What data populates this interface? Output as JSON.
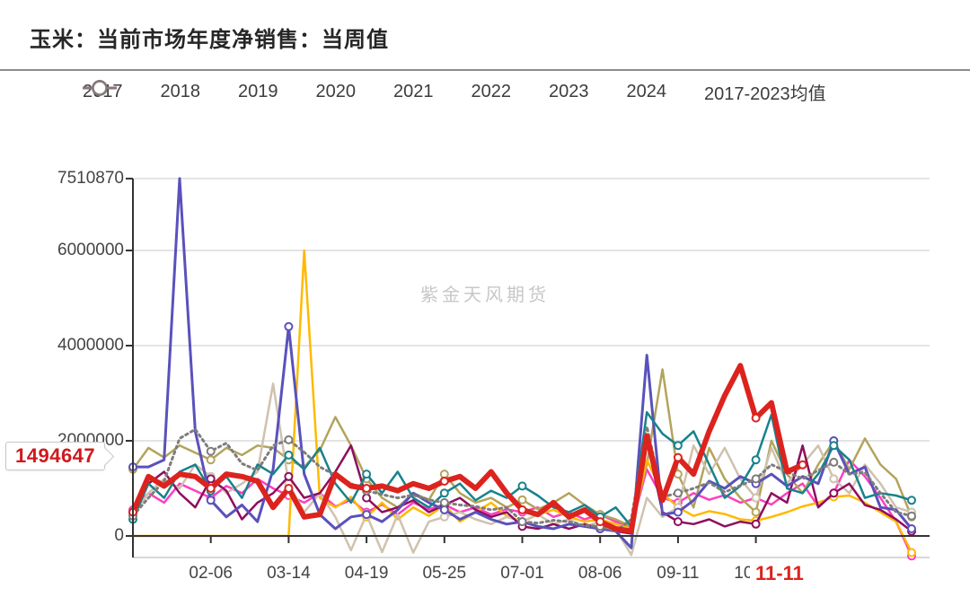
{
  "title": "玉米：当前市场年度净销售：当周值",
  "watermark": "紫金天风期货",
  "legend": {
    "items": [
      {
        "label": "2017",
        "color": "#FF3EC0"
      },
      {
        "label": "2018",
        "color": "#B3A45C"
      },
      {
        "label": "2019",
        "color": "#FFB900"
      },
      {
        "label": "2020",
        "color": "#17828C"
      },
      {
        "label": "2021",
        "color": "#5A51BC"
      },
      {
        "label": "2022",
        "color": "#8E0E5F"
      },
      {
        "label": "2023",
        "color": "#CFC2AE"
      },
      {
        "label": "2024",
        "color": "#DC231E"
      },
      {
        "label": "2017-2023均值",
        "color": "#7D7D7D"
      }
    ]
  },
  "chart_data": {
    "type": "line",
    "title": "玉米：当前市场年度净销售：当周值",
    "ylim": [
      -450000,
      7510870
    ],
    "grid": "horizontal",
    "legend_position": "top",
    "y_ticks": [
      {
        "value": 0,
        "label": "0"
      },
      {
        "value": 2000000,
        "label": "2000000"
      },
      {
        "value": 4000000,
        "label": "4000000"
      },
      {
        "value": 6000000,
        "label": "6000000"
      },
      {
        "value": 7510870,
        "label": "7510870"
      }
    ],
    "x_ticks": [
      {
        "i": 5,
        "label": "02-06"
      },
      {
        "i": 10,
        "label": "03-14"
      },
      {
        "i": 15,
        "label": "04-19"
      },
      {
        "i": 20,
        "label": "05-25"
      },
      {
        "i": 25,
        "label": "07-01"
      },
      {
        "i": 30,
        "label": "08-06"
      },
      {
        "i": 35,
        "label": "09-11"
      },
      {
        "i": 40,
        "label": "10-17"
      }
    ],
    "current_x_label": {
      "label": "11-11",
      "i": 43.4
    },
    "annotation": {
      "value_label": "1494647",
      "value": 1494647,
      "series": "2024"
    },
    "series": [
      {
        "name": "2017",
        "color": "#FF3EC0",
        "width": 2.5,
        "dash": null,
        "values": [
          550000,
          900000,
          700000,
          1100000,
          950000,
          800000,
          1050000,
          900000,
          1200000,
          1000000,
          850000,
          700000,
          900000,
          620000,
          760000,
          500000,
          660000,
          450000,
          700000,
          560000,
          660000,
          500000,
          600000,
          450000,
          560000,
          500000,
          600000,
          400000,
          500000,
          350000,
          450000,
          300000,
          200000,
          1400000,
          800000,
          700000,
          900000,
          760000,
          860000,
          700000,
          800000,
          660000,
          900000,
          1100000,
          620000,
          900000,
          1600000,
          1250000,
          800000,
          300000,
          -420000
        ]
      },
      {
        "name": "2018",
        "color": "#B3A45C",
        "width": 2.5,
        "dash": null,
        "values": [
          1400000,
          1850000,
          1650000,
          1900000,
          1750000,
          1600000,
          1850000,
          1700000,
          1900000,
          1850000,
          1600000,
          1450000,
          1800000,
          2500000,
          1900000,
          1200000,
          800000,
          600000,
          900000,
          760000,
          1300000,
          900000,
          700000,
          800000,
          600000,
          760000,
          560000,
          700000,
          900000,
          650000,
          450000,
          350000,
          200000,
          1500000,
          3500000,
          1300000,
          600000,
          1850000,
          1200000,
          800000,
          500000,
          2000000,
          1300000,
          900000,
          1500000,
          2000000,
          1400000,
          2050000,
          1500000,
          1200000,
          400000
        ]
      },
      {
        "name": "2019",
        "color": "#FFB900",
        "width": 2.5,
        "dash": null,
        "values": [
          0,
          0,
          0,
          0,
          0,
          0,
          0,
          0,
          0,
          0,
          0,
          6000000,
          800000,
          600000,
          820000,
          400000,
          700000,
          350000,
          600000,
          420000,
          650000,
          300000,
          500000,
          700000,
          420000,
          300000,
          450000,
          550000,
          400000,
          300000,
          350000,
          250000,
          150000,
          1600000,
          900000,
          600000,
          420000,
          520000,
          460000,
          350000,
          320000,
          400000,
          500000,
          620000,
          700000,
          820000,
          850000,
          700000,
          500000,
          300000,
          -350000
        ]
      },
      {
        "name": "2023",
        "color": "#CFC2AE",
        "width": 2.5,
        "dash": null,
        "values": [
          450000,
          900000,
          1200000,
          1000000,
          1500000,
          1250000,
          900000,
          1100000,
          1350000,
          3200000,
          1100000,
          500000,
          900000,
          400000,
          -300000,
          450000,
          -340000,
          450000,
          -350000,
          300000,
          400000,
          500000,
          350000,
          250000,
          400000,
          300000,
          450000,
          250000,
          350000,
          200000,
          300000,
          150000,
          -400000,
          800000,
          400000,
          600000,
          1900000,
          1300000,
          1850000,
          1200000,
          800000,
          1850000,
          1100000,
          1500000,
          1900000,
          1200000,
          900000,
          1500000,
          1100000,
          600000,
          500000
        ]
      },
      {
        "name": "2022",
        "color": "#8E0E5F",
        "width": 2.5,
        "dash": null,
        "values": [
          500000,
          1100000,
          1350000,
          900000,
          600000,
          1200000,
          950000,
          350000,
          700000,
          900000,
          1250000,
          800000,
          900000,
          1350000,
          1900000,
          800000,
          500000,
          600000,
          750000,
          500000,
          650000,
          800000,
          550000,
          400000,
          500000,
          200000,
          150000,
          250000,
          150000,
          250000,
          150000,
          100000,
          50000,
          2000000,
          500000,
          300000,
          250000,
          350000,
          200000,
          300000,
          250000,
          900000,
          700000,
          1900000,
          600000,
          900000,
          1100000,
          650000,
          550000,
          350000,
          100000
        ]
      },
      {
        "name": "2021",
        "color": "#5A51BC",
        "width": 3,
        "dash": null,
        "values": [
          1450000,
          1450000,
          1600000,
          7510870,
          2200000,
          750000,
          400000,
          650000,
          300000,
          1400000,
          4400000,
          1300000,
          450000,
          150000,
          400000,
          450000,
          300000,
          550000,
          900000,
          700000,
          550000,
          350000,
          500000,
          350000,
          250000,
          300000,
          200000,
          150000,
          250000,
          200000,
          150000,
          100000,
          -250000,
          3800000,
          450000,
          500000,
          750000,
          1150000,
          1000000,
          1250000,
          1100000,
          1300000,
          1050000,
          1250000,
          1100000,
          2000000,
          1300000,
          1450000,
          600000,
          550000,
          150000
        ]
      },
      {
        "name": "2020",
        "color": "#17828C",
        "width": 2.5,
        "dash": null,
        "values": [
          350000,
          1100000,
          800000,
          1350000,
          1500000,
          950000,
          1250000,
          800000,
          1500000,
          1300000,
          1700000,
          1400000,
          1850000,
          1100000,
          700000,
          1300000,
          900000,
          1350000,
          800000,
          600000,
          900000,
          1100000,
          750000,
          950000,
          800000,
          1050000,
          850000,
          600000,
          500000,
          650000,
          400000,
          600000,
          200000,
          2600000,
          2150000,
          1900000,
          2200000,
          1500000,
          800000,
          1050000,
          1600000,
          2550000,
          1000000,
          900000,
          1300000,
          1900000,
          1600000,
          800000,
          900000,
          850000,
          750000
        ]
      },
      {
        "name": "2017-2023均值",
        "color": "#7D7D7D",
        "width": 3,
        "dash": "2.5 4",
        "values": [
          420000,
          800000,
          1150000,
          2050000,
          2240000,
          1780000,
          1950000,
          1520000,
          1380000,
          1900000,
          2020000,
          1760000,
          1450000,
          1280000,
          1100000,
          950000,
          870000,
          800000,
          860000,
          760000,
          700000,
          650000,
          620000,
          550000,
          600000,
          300000,
          270000,
          330000,
          300000,
          220000,
          200000,
          100000,
          350000,
          2300000,
          820000,
          900000,
          1000000,
          1120000,
          920000,
          1060000,
          1200000,
          1500000,
          1350000,
          1200000,
          1380000,
          1550000,
          1300000,
          1340000,
          900000,
          500000,
          420000
        ]
      },
      {
        "name": "2024",
        "color": "#DC231E",
        "width": 6,
        "dash": null,
        "values": [
          500000,
          1250000,
          1050000,
          1300000,
          1250000,
          1000000,
          1300000,
          1250000,
          1150000,
          600000,
          1000000,
          400000,
          450000,
          1300000,
          1050000,
          1000000,
          1050000,
          950000,
          1100000,
          1000000,
          1150000,
          1250000,
          1000000,
          1350000,
          900000,
          550000,
          450000,
          700000,
          400000,
          550000,
          300000,
          150000,
          100000,
          2100000,
          750000,
          1650000,
          1300000,
          2200000,
          2950000,
          3580000,
          2480000,
          2800000,
          1350000,
          1494647
        ]
      }
    ]
  }
}
